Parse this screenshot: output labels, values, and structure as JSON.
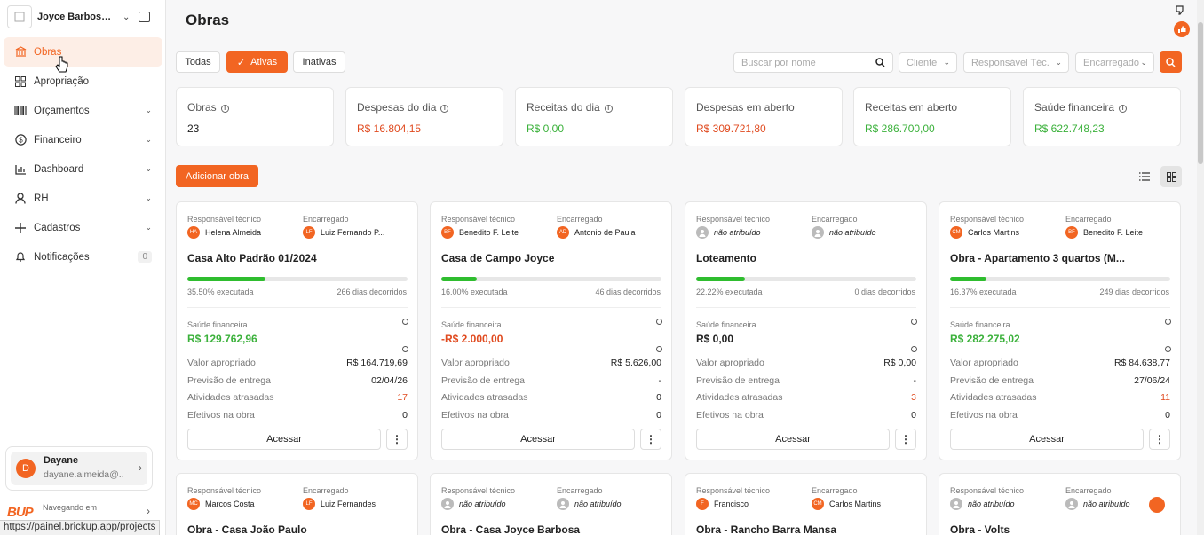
{
  "workspace": {
    "name": "Joyce Barbosa E...",
    "logo_text": "logo"
  },
  "sidebar": {
    "items": [
      {
        "label": "Obras",
        "icon": "bank-icon",
        "active": true
      },
      {
        "label": "Apropriação",
        "icon": "grid-icon"
      },
      {
        "label": "Orçamentos",
        "icon": "barcode-icon",
        "chevron": true
      },
      {
        "label": "Financeiro",
        "icon": "dollar-icon",
        "chevron": true
      },
      {
        "label": "Dashboard",
        "icon": "bar-chart-icon",
        "chevron": true
      },
      {
        "label": "RH",
        "icon": "user-icon",
        "chevron": true
      },
      {
        "label": "Cadastros",
        "icon": "plus-icon",
        "chevron": true
      },
      {
        "label": "Notificações",
        "icon": "bell-icon",
        "count": "0"
      }
    ]
  },
  "user": {
    "initial": "D",
    "name": "Dayane",
    "email": "dayane.almeida@..."
  },
  "brand": {
    "logo": "BUP",
    "navigating": "Navegando em",
    "name": "Brickup"
  },
  "status_url": "https://painel.brickup.app/projects",
  "page": {
    "title": "Obras"
  },
  "filters": {
    "all": "Todas",
    "active": "Ativas",
    "inactive": "Inativas"
  },
  "search": {
    "placeholder": "Buscar por nome"
  },
  "selects": {
    "client": "Cliente",
    "tech": "Responsável Téc.",
    "manager": "Encarregado"
  },
  "stats": [
    {
      "label": "Obras",
      "value": "23",
      "color": "dark",
      "info": true
    },
    {
      "label": "Despesas do dia",
      "value": "R$ 16.804,15",
      "color": "red",
      "info": true
    },
    {
      "label": "Receitas do dia",
      "value": "R$ 0,00",
      "color": "green",
      "info": true
    },
    {
      "label": "Despesas em aberto",
      "value": "R$ 309.721,80",
      "color": "red",
      "info": false
    },
    {
      "label": "Receitas em aberto",
      "value": "R$ 286.700,00",
      "color": "green",
      "info": false
    },
    {
      "label": "Saúde financeira",
      "value": "R$ 622.748,23",
      "color": "green",
      "info": true
    }
  ],
  "add_button": "Adicionar obra",
  "card_labels": {
    "tech": "Responsável técnico",
    "manager": "Encarregado",
    "executed": "executada",
    "days": "dias decorridos",
    "health": "Saúde financeira",
    "appropriated": "Valor apropriado",
    "delivery": "Previsão de entrega",
    "late": "Atividades atrasadas",
    "staff": "Efetivos na obra",
    "access": "Acessar"
  },
  "cards": [
    {
      "tech": {
        "initials": "HA",
        "name": "Helena Almeida"
      },
      "manager": {
        "initials": "LF",
        "name": "Luiz Fernando P..."
      },
      "name": "Casa Alto Padrão 01/2024",
      "progress": 35.5,
      "pct": "35.50% executada",
      "days": "266 dias decorridos",
      "health": "R$ 129.762,96",
      "health_color": "green",
      "appropriated": "R$ 164.719,69",
      "delivery": "02/04/26",
      "late": "17",
      "late_red": true,
      "staff": "0"
    },
    {
      "tech": {
        "initials": "BF",
        "name": "Benedito F. Leite"
      },
      "manager": {
        "initials": "AD",
        "name": "Antonio de Paula"
      },
      "name": "Casa de Campo Joyce",
      "progress": 16,
      "pct": "16.00% executada",
      "days": "46 dias decorridos",
      "health": "-R$ 2.000,00",
      "health_color": "red",
      "appropriated": "R$ 5.626,00",
      "delivery": "-",
      "late": "0",
      "late_red": false,
      "staff": "0"
    },
    {
      "tech": {
        "initials": "",
        "name": "não atribuído",
        "na": true
      },
      "manager": {
        "initials": "",
        "name": "não atribuído",
        "na": true
      },
      "name": "Loteamento",
      "progress": 22.22,
      "pct": "22.22% executada",
      "days": "0 dias decorridos",
      "health": "R$ 0,00",
      "health_color": "dark",
      "appropriated": "R$ 0,00",
      "delivery": "-",
      "late": "3",
      "late_red": true,
      "staff": "0"
    },
    {
      "tech": {
        "initials": "CM",
        "name": "Carlos Martins"
      },
      "manager": {
        "initials": "BF",
        "name": "Benedito F. Leite"
      },
      "name": "Obra - Apartamento 3 quartos (M...",
      "progress": 16.37,
      "pct": "16.37% executada",
      "days": "249 dias decorridos",
      "health": "R$ 282.275,02",
      "health_color": "green",
      "appropriated": "R$ 84.638,77",
      "delivery": "27/06/24",
      "late": "11",
      "late_red": true,
      "staff": "0"
    },
    {
      "tech": {
        "initials": "MC",
        "name": "Marcos Costa"
      },
      "manager": {
        "initials": "LF",
        "name": "Luiz Fernandes"
      },
      "name": "Obra - Casa João Paulo"
    },
    {
      "tech": {
        "initials": "",
        "name": "não atribuído",
        "na": true
      },
      "manager": {
        "initials": "",
        "name": "não atribuído",
        "na": true
      },
      "name": "Obra - Casa Joyce Barbosa"
    },
    {
      "tech": {
        "initials": "F",
        "name": "Francisco"
      },
      "manager": {
        "initials": "CM",
        "name": "Carlos Martins"
      },
      "name": "Obra - Rancho Barra Mansa"
    },
    {
      "tech": {
        "initials": "",
        "name": "não atribuído",
        "na": true
      },
      "manager": {
        "initials": "",
        "name": "não atribuído",
        "na": true
      },
      "name": "Obra - Volts"
    }
  ]
}
